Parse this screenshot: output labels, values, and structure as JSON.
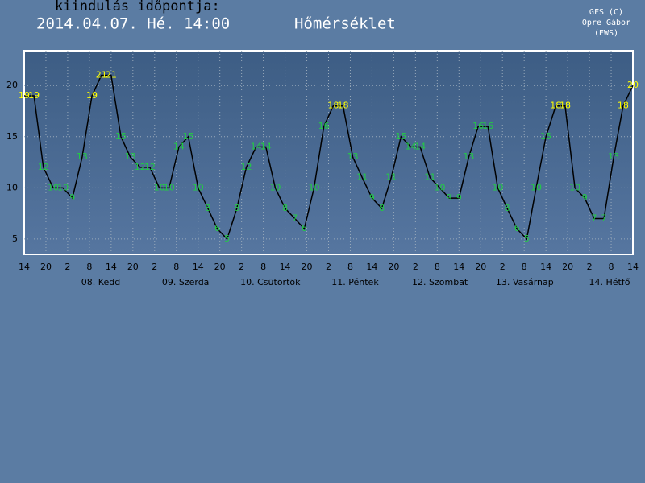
{
  "header": {
    "label": "kiindulás időpontja:",
    "date": "2014.04.07. Hé. 14:00",
    "credit": [
      "GFS (C)",
      "Opre Gábor",
      "(EWS)"
    ]
  },
  "chart_data": {
    "type": "line",
    "title": "Hőmérséklet",
    "x": [
      0,
      2.7,
      5.3,
      8,
      10.7,
      13.3,
      16,
      18.7,
      21.3,
      24,
      26.7,
      29.3,
      32,
      34.7,
      37.3,
      40,
      42.7,
      45.3,
      48,
      50.7,
      53.3,
      56,
      58.7,
      61.3,
      64,
      66.7,
      69.3,
      72,
      74.7,
      77.3,
      80,
      82.7,
      85.3,
      88,
      90.7,
      93.3,
      96,
      98.7,
      101.3,
      104,
      106.7,
      109.3,
      112,
      114.7,
      117.3,
      120,
      122.7,
      125.3,
      128,
      130.7,
      133.3,
      136,
      138.7,
      141.3,
      144,
      146.7,
      149.3,
      152,
      154.7,
      157.3,
      160,
      162.7,
      165.3,
      168
    ],
    "series": [
      {
        "name": "Hőmérséklet",
        "color": "#000000",
        "values": [
          19,
          19,
          12,
          10,
          10,
          9,
          13,
          19,
          21,
          21,
          15,
          13,
          12,
          12,
          10,
          10,
          14,
          15,
          10,
          8,
          6,
          5,
          8,
          12,
          14,
          14,
          10,
          8,
          7,
          6,
          10,
          16,
          18,
          18,
          13,
          11,
          9,
          8,
          11,
          15,
          14,
          14,
          11,
          10,
          9,
          9,
          13,
          16,
          16,
          10,
          8,
          6,
          5,
          10,
          15,
          18,
          18,
          10,
          9,
          7,
          7,
          13,
          18,
          20
        ],
        "label_colors": [
          "#ffff00",
          "#ffff00",
          "#22cc44",
          "#22cc44",
          "#22cc44",
          "#22cc44",
          "#22cc44",
          "#ffff00",
          "#ffff00",
          "#ffff00",
          "#22cc44",
          "#22cc44",
          "#22cc44",
          "#22cc44",
          "#22cc44",
          "#22cc44",
          "#22cc44",
          "#22cc44",
          "#22cc44",
          "#22cc44",
          "#22cc44",
          "#22cc44",
          "#22cc44",
          "#22cc44",
          "#22cc44",
          "#22cc44",
          "#22cc44",
          "#22cc44",
          "#22cc44",
          "#22cc44",
          "#22cc44",
          "#22cc44",
          "#ffff00",
          "#ffff00",
          "#22cc44",
          "#22cc44",
          "#22cc44",
          "#22cc44",
          "#22cc44",
          "#22cc44",
          "#22cc44",
          "#22cc44",
          "#22cc44",
          "#22cc44",
          "#22cc44",
          "#22cc44",
          "#22cc44",
          "#22cc44",
          "#22cc44",
          "#22cc44",
          "#22cc44",
          "#22cc44",
          "#22cc44",
          "#22cc44",
          "#22cc44",
          "#ffff00",
          "#ffff00",
          "#22cc44",
          "#22cc44",
          "#22cc44",
          "#22cc44",
          "#22cc44",
          "#ffff00",
          "#ffff00"
        ]
      }
    ],
    "xlim": [
      0,
      168
    ],
    "xticks": [
      {
        "value": 0,
        "label": "14"
      },
      {
        "value": 6,
        "label": "20"
      },
      {
        "value": 12,
        "label": "2"
      },
      {
        "value": 18,
        "label": "8"
      },
      {
        "value": 24,
        "label": "14"
      },
      {
        "value": 30,
        "label": "20"
      },
      {
        "value": 36,
        "label": "2"
      },
      {
        "value": 42,
        "label": "8"
      },
      {
        "value": 48,
        "label": "14"
      },
      {
        "value": 54,
        "label": "20"
      },
      {
        "value": 60,
        "label": "2"
      },
      {
        "value": 66,
        "label": "8"
      },
      {
        "value": 72,
        "label": "14"
      },
      {
        "value": 78,
        "label": "20"
      },
      {
        "value": 84,
        "label": "2"
      },
      {
        "value": 90,
        "label": "8"
      },
      {
        "value": 96,
        "label": "14"
      },
      {
        "value": 102,
        "label": "20"
      },
      {
        "value": 108,
        "label": "2"
      },
      {
        "value": 114,
        "label": "8"
      },
      {
        "value": 120,
        "label": "14"
      },
      {
        "value": 126,
        "label": "20"
      },
      {
        "value": 132,
        "label": "2"
      },
      {
        "value": 138,
        "label": "8"
      },
      {
        "value": 144,
        "label": "14"
      },
      {
        "value": 150,
        "label": "20"
      },
      {
        "value": 156,
        "label": "2"
      },
      {
        "value": 162,
        "label": "8"
      },
      {
        "value": 168,
        "label": "14"
      }
    ],
    "days": [
      "08. Kedd",
      "09. Szerda",
      "10. Csütörtök",
      "11. Péntek",
      "12. Szombat",
      "13. Vasárnap",
      "14. Hétfő"
    ],
    "ylim": [
      3.5,
      23.4
    ],
    "yticks": [
      5,
      10,
      15,
      20
    ],
    "grid": true
  }
}
